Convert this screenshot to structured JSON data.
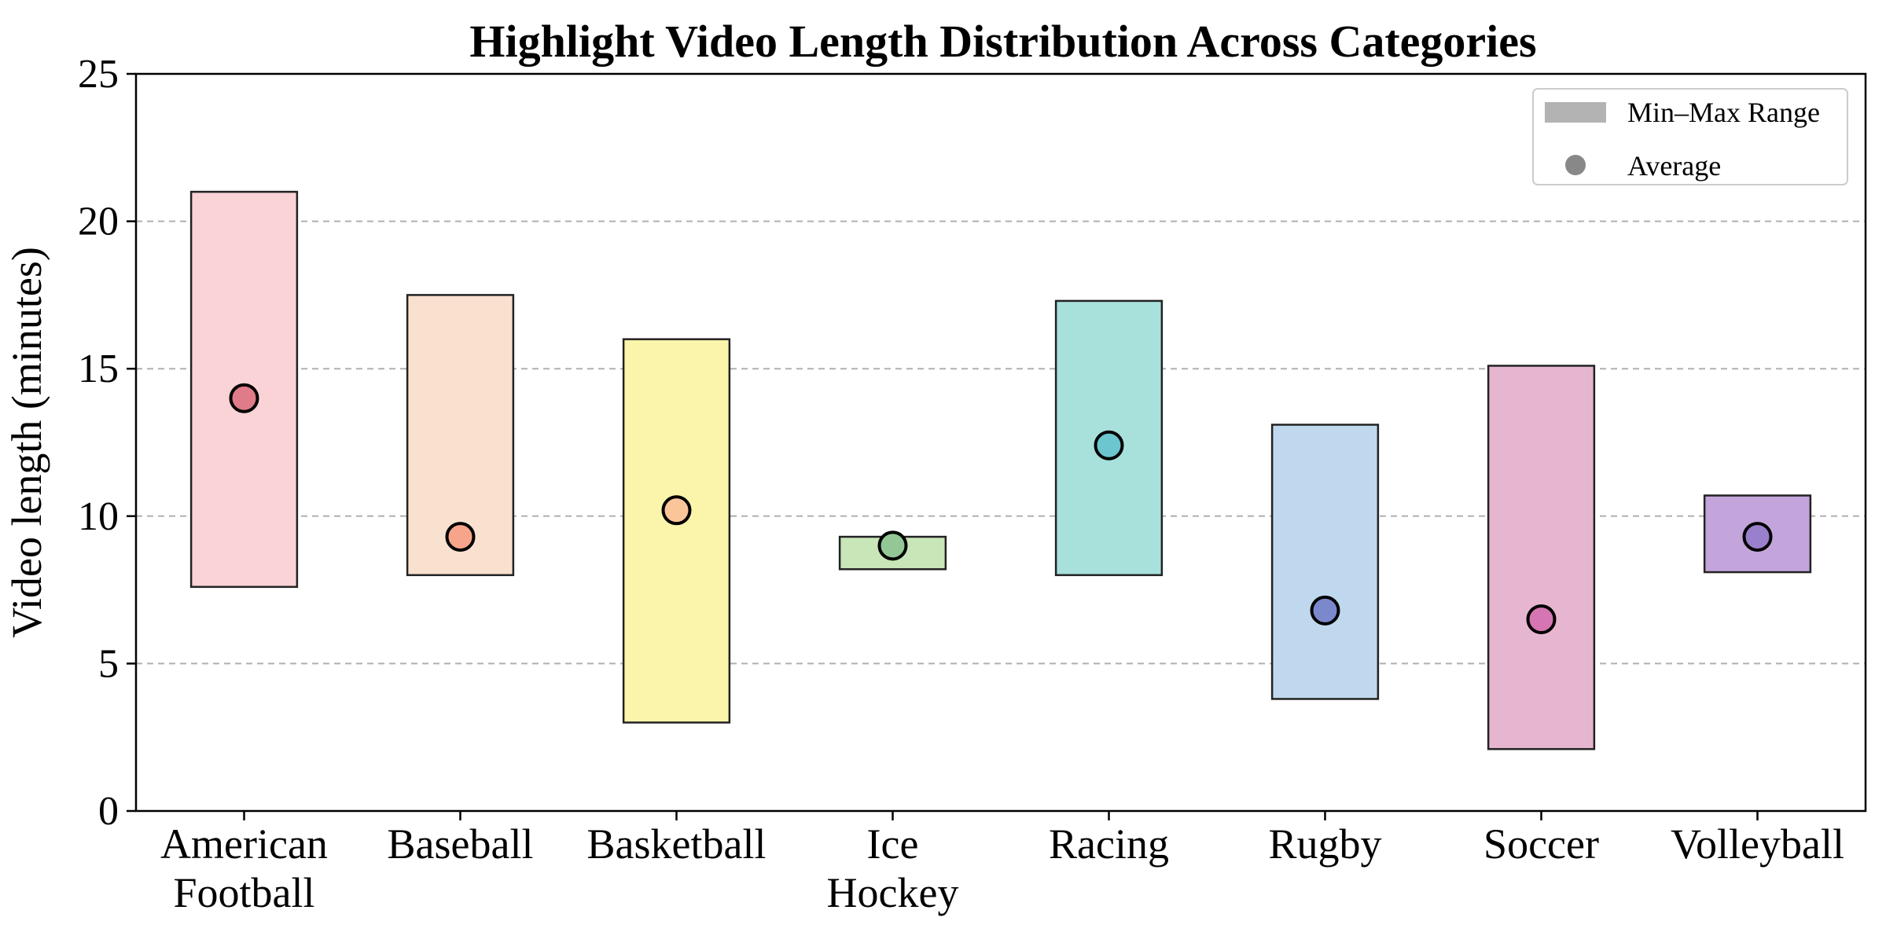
{
  "chart_data": {
    "type": "bar",
    "title": "Highlight Video Length Distribution Across Categories",
    "xlabel": "",
    "ylabel": "Video length (minutes)",
    "ylim": [
      0,
      25
    ],
    "yticks": [
      "0",
      "5",
      "10",
      "15",
      "20",
      "25"
    ],
    "grid": "y-dashed",
    "legend_position": "top-right",
    "legend": [
      {
        "label": "Min–Max Range",
        "kind": "range",
        "color": "#b3b3b3"
      },
      {
        "label": "Average",
        "kind": "point",
        "color": "#888888"
      }
    ],
    "categories": [
      {
        "lines": [
          "American",
          "Football"
        ],
        "min": 7.6,
        "max": 21.0,
        "avg": 14.0,
        "fill": "#f9d3d6",
        "dot": "#e07b89"
      },
      {
        "lines": [
          "Baseball"
        ],
        "min": 8.0,
        "max": 17.5,
        "avg": 9.3,
        "fill": "#f9e1cf",
        "dot": "#f7a58a"
      },
      {
        "lines": [
          "Basketball"
        ],
        "min": 3.0,
        "max": 16.0,
        "avg": 10.2,
        "fill": "#fbf5ab",
        "dot": "#fbc59a"
      },
      {
        "lines": [
          "Ice",
          "Hockey"
        ],
        "min": 8.2,
        "max": 9.3,
        "avg": 9.0,
        "fill": "#c8e6b8",
        "dot": "#93c896"
      },
      {
        "lines": [
          "Racing"
        ],
        "min": 8.0,
        "max": 17.3,
        "avg": 12.4,
        "fill": "#a8e0dc",
        "dot": "#6cc6cf"
      },
      {
        "lines": [
          "Rugby"
        ],
        "min": 3.8,
        "max": 13.1,
        "avg": 6.8,
        "fill": "#c0d8ed",
        "dot": "#7c88cc"
      },
      {
        "lines": [
          "Soccer"
        ],
        "min": 2.1,
        "max": 15.1,
        "avg": 6.5,
        "fill": "#e6b6d0",
        "dot": "#d576b3"
      },
      {
        "lines": [
          "Volleyball"
        ],
        "min": 8.1,
        "max": 10.7,
        "avg": 9.3,
        "fill": "#c3a5dc",
        "dot": "#9a7fcc"
      }
    ]
  }
}
